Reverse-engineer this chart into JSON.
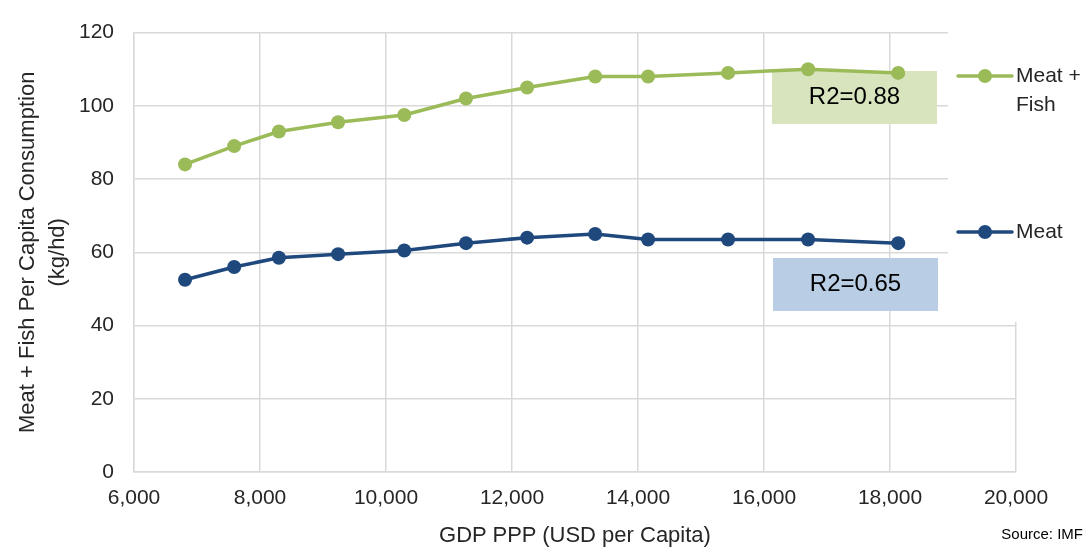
{
  "chart_data": {
    "type": "line",
    "xlabel": "GDP PPP (USD per Capita)",
    "ylabel": "Meat + Fish Per Capita Consumption (kg/hd)",
    "x": [
      6810,
      7590,
      8300,
      9240,
      10290,
      11270,
      12240,
      13320,
      14160,
      15430,
      16700,
      18130
    ],
    "series": [
      {
        "name": "Meat + Fish",
        "color": "#9bbb59",
        "values": [
          84,
          89,
          93,
          95.5,
          97.5,
          102,
          105,
          108,
          108,
          109,
          110,
          109
        ]
      },
      {
        "name": "Meat",
        "color": "#1f497d",
        "values": [
          52.5,
          56,
          58.5,
          59.5,
          60.5,
          62.5,
          64,
          65,
          63.5,
          63.5,
          63.5,
          62.5
        ]
      }
    ],
    "xlim": [
      6000,
      20000
    ],
    "xticks": [
      {
        "value": 6000,
        "label": "6,000"
      },
      {
        "value": 8000,
        "label": "8,000"
      },
      {
        "value": 10000,
        "label": "10,000"
      },
      {
        "value": 12000,
        "label": "12,000"
      },
      {
        "value": 14000,
        "label": "14,000"
      },
      {
        "value": 16000,
        "label": "16,000"
      },
      {
        "value": 18000,
        "label": "18,000"
      },
      {
        "value": 20000,
        "label": "20,000"
      }
    ],
    "ylim": [
      0,
      120
    ],
    "yticks": [
      0,
      20,
      40,
      60,
      80,
      100,
      120
    ],
    "grid": true,
    "legend": "right",
    "marker": "circle",
    "line_style": "solid",
    "annotations": [
      "R2=0.88",
      "R2=0.65",
      "Source: IMF"
    ]
  }
}
